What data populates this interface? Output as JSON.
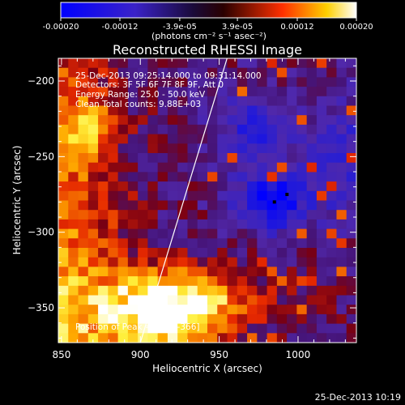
{
  "colorbar": {
    "ticks": [
      "-0.00020",
      "-0.00012",
      "-3.9e-05",
      "3.9e-05",
      "0.00012",
      "0.00020"
    ],
    "tick_values": [
      -0.0002,
      -0.00012,
      -3.9e-05,
      3.9e-05,
      0.00012,
      0.0002
    ],
    "vmin": -0.0002,
    "vmax": 0.0002,
    "units_label": "(photons cm⁻² s⁻¹ asec⁻²)"
  },
  "info": {
    "line1": "25-Dec-2013 09:25:14.000 to 09:31:14.000",
    "line2": "Detectors: 3F 5F 6F 7F 8F 9F, Att 0",
    "line3": "Energy Range: 25.0 - 50.0 keV",
    "line4": "Clean     Total counts: 9.88E+03",
    "peak": "Position of Peak = [935,-366]"
  },
  "footer_timestamp": "25-Dec-2013 10:19",
  "chart_data": {
    "type": "heatmap",
    "title": "Reconstructed RHESSI Image",
    "xlabel": "Heliocentric X (arcsec)",
    "ylabel": "Heliocentric Y (arcsec)",
    "xlim": [
      848,
      1037
    ],
    "ylim": [
      -373,
      -185
    ],
    "x_ticks": [
      850,
      900,
      950,
      1000
    ],
    "y_ticks": [
      -200,
      -250,
      -300,
      -350
    ],
    "x_tick_labels": [
      "850",
      "900",
      "950",
      "1000"
    ],
    "y_tick_labels": [
      "−200",
      "−250",
      "−300",
      "−350"
    ],
    "colormap": "blue-purple-red-yellow-white",
    "limb_line": [
      [
        900,
        -373
      ],
      [
        955,
        -185
      ]
    ],
    "blue_minimum_points": [
      [
        985,
        -280
      ],
      [
        993,
        -275
      ]
    ]
  }
}
